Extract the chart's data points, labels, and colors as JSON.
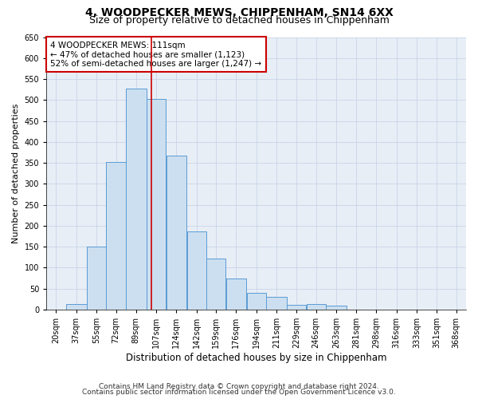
{
  "title1": "4, WOODPECKER MEWS, CHIPPENHAM, SN14 6XX",
  "title2": "Size of property relative to detached houses in Chippenham",
  "xlabel": "Distribution of detached houses by size in Chippenham",
  "ylabel": "Number of detached properties",
  "bar_labels": [
    "20sqm",
    "37sqm",
    "55sqm",
    "72sqm",
    "89sqm",
    "107sqm",
    "124sqm",
    "142sqm",
    "159sqm",
    "176sqm",
    "194sqm",
    "211sqm",
    "229sqm",
    "246sqm",
    "263sqm",
    "281sqm",
    "298sqm",
    "316sqm",
    "333sqm",
    "351sqm",
    "368sqm"
  ],
  "bar_values": [
    0,
    13,
    150,
    353,
    527,
    502,
    367,
    187,
    122,
    75,
    40,
    30,
    12,
    13,
    9,
    0,
    0,
    0,
    0,
    0,
    0
  ],
  "bar_left_edges": [
    20,
    37,
    55,
    72,
    89,
    107,
    124,
    142,
    159,
    176,
    194,
    211,
    229,
    246,
    263,
    281,
    298,
    316,
    333,
    351,
    368
  ],
  "bar_widths": [
    17,
    18,
    17,
    17,
    18,
    17,
    18,
    17,
    17,
    18,
    17,
    18,
    17,
    17,
    18,
    17,
    18,
    17,
    18,
    17,
    17
  ],
  "bar_facecolor": "#ccdff0",
  "bar_edgecolor": "#5b9bd5",
  "vline_x": 111,
  "vline_color": "#cc0000",
  "vline_lw": 1.2,
  "annotation_text": "4 WOODPECKER MEWS: 111sqm\n← 47% of detached houses are smaller (1,123)\n52% of semi-detached houses are larger (1,247) →",
  "ann_box_color": "#cc0000",
  "ylim": [
    0,
    650
  ],
  "xlim": [
    20,
    385
  ],
  "yticks": [
    0,
    50,
    100,
    150,
    200,
    250,
    300,
    350,
    400,
    450,
    500,
    550,
    600,
    650
  ],
  "grid_color": "#c8d4e8",
  "background_color": "#e8eef6",
  "footer1": "Contains HM Land Registry data © Crown copyright and database right 2024.",
  "footer2": "Contains public sector information licensed under the Open Government Licence v3.0.",
  "title1_fontsize": 10,
  "title2_fontsize": 9,
  "xlabel_fontsize": 8.5,
  "ylabel_fontsize": 8,
  "tick_fontsize": 7,
  "ann_fontsize": 7.5,
  "footer_fontsize": 6.5
}
